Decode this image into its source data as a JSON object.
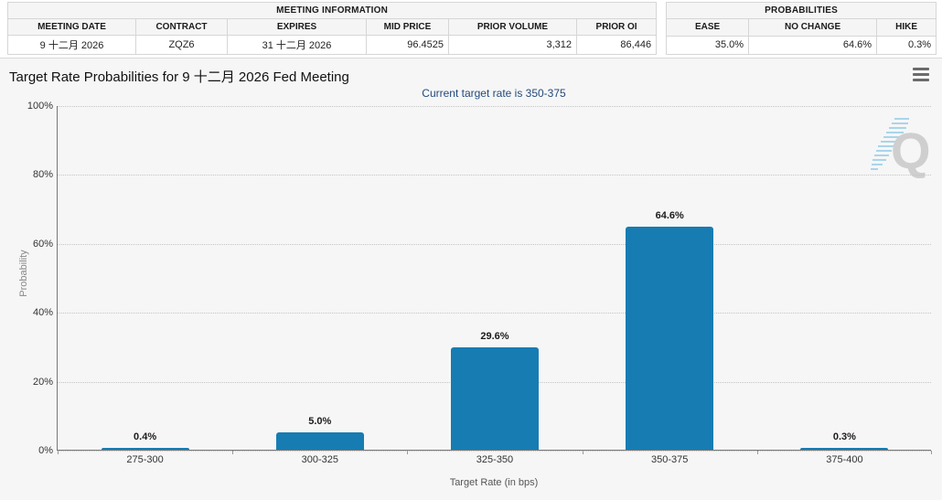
{
  "meeting_information": {
    "title": "MEETING INFORMATION",
    "columns": [
      "MEETING DATE",
      "CONTRACT",
      "EXPIRES",
      "MID PRICE",
      "PRIOR VOLUME",
      "PRIOR OI"
    ],
    "values": [
      "9 十二月 2026",
      "ZQZ6",
      "31 十二月 2026",
      "96.4525",
      "3,312",
      "86,446"
    ]
  },
  "probabilities": {
    "title": "PROBABILITIES",
    "columns": [
      "EASE",
      "NO CHANGE",
      "HIKE"
    ],
    "values": [
      "35.0%",
      "64.6%",
      "0.3%"
    ]
  },
  "chart": {
    "title": "Target Rate Probabilities for 9 十二月 2026 Fed Meeting",
    "subtitle": "Current target rate is 350-375",
    "menu_icon": "hamburger-icon",
    "watermark_letter": "Q"
  },
  "chart_data": {
    "type": "bar",
    "title": "Target Rate Probabilities for 9 十二月 2026 Fed Meeting",
    "subtitle": "Current target rate is 350-375",
    "categories": [
      "275-300",
      "300-325",
      "325-350",
      "350-375",
      "375-400"
    ],
    "values": [
      0.4,
      5.0,
      29.6,
      64.6,
      0.3
    ],
    "value_labels": [
      "0.4%",
      "5.0%",
      "29.6%",
      "64.6%",
      "0.3%"
    ],
    "xlabel": "Target Rate (in bps)",
    "ylabel": "Probability",
    "ylim": [
      0,
      100
    ],
    "yticks": [
      0,
      20,
      40,
      60,
      80,
      100
    ],
    "ytick_labels": [
      "0%",
      "20%",
      "40%",
      "60%",
      "80%",
      "100%"
    ],
    "grid": "horizontal-dotted",
    "legend": "none",
    "bar_color": "#177cb2"
  },
  "colors": {
    "bar": "#177cb2",
    "subtitle_text": "#234a7c",
    "panel_background": "#f6f6f6",
    "table_header_background": "#f5f5f5",
    "watermark_gray": "#cfcfcf",
    "watermark_blue": "#a9d5ea"
  }
}
